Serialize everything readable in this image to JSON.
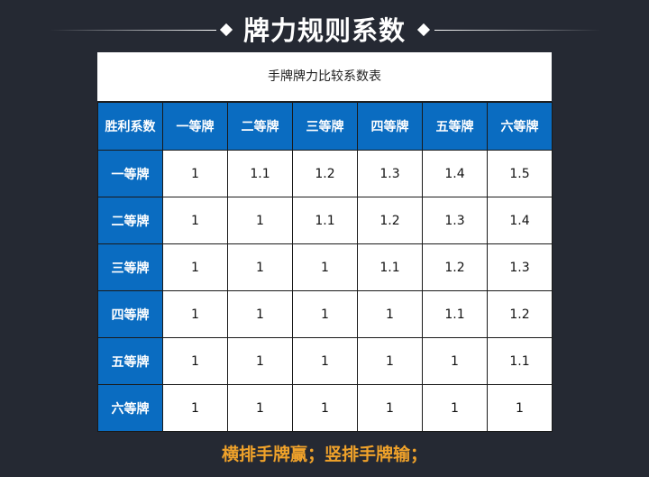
{
  "header": {
    "title": "牌力规则系数"
  },
  "table": {
    "caption": "手牌牌力比较系数表",
    "corner": "胜利系数",
    "columns": [
      "一等牌",
      "二等牌",
      "三等牌",
      "四等牌",
      "五等牌",
      "六等牌"
    ],
    "rows": [
      {
        "label": "一等牌",
        "values": [
          "1",
          "1.1",
          "1.2",
          "1.3",
          "1.4",
          "1.5"
        ]
      },
      {
        "label": "二等牌",
        "values": [
          "1",
          "1",
          "1.1",
          "1.2",
          "1.3",
          "1.4"
        ]
      },
      {
        "label": "三等牌",
        "values": [
          "1",
          "1",
          "1",
          "1.1",
          "1.2",
          "1.3"
        ]
      },
      {
        "label": "四等牌",
        "values": [
          "1",
          "1",
          "1",
          "1",
          "1.1",
          "1.2"
        ]
      },
      {
        "label": "五等牌",
        "values": [
          "1",
          "1",
          "1",
          "1",
          "1",
          "1.1"
        ]
      },
      {
        "label": "六等牌",
        "values": [
          "1",
          "1",
          "1",
          "1",
          "1",
          "1"
        ]
      }
    ]
  },
  "footer": {
    "note": "横排手牌赢；竖排手牌输；"
  },
  "colors": {
    "background": "#252933",
    "header_cell": "#0a6cc1",
    "footer_text": "#f0a22a"
  }
}
